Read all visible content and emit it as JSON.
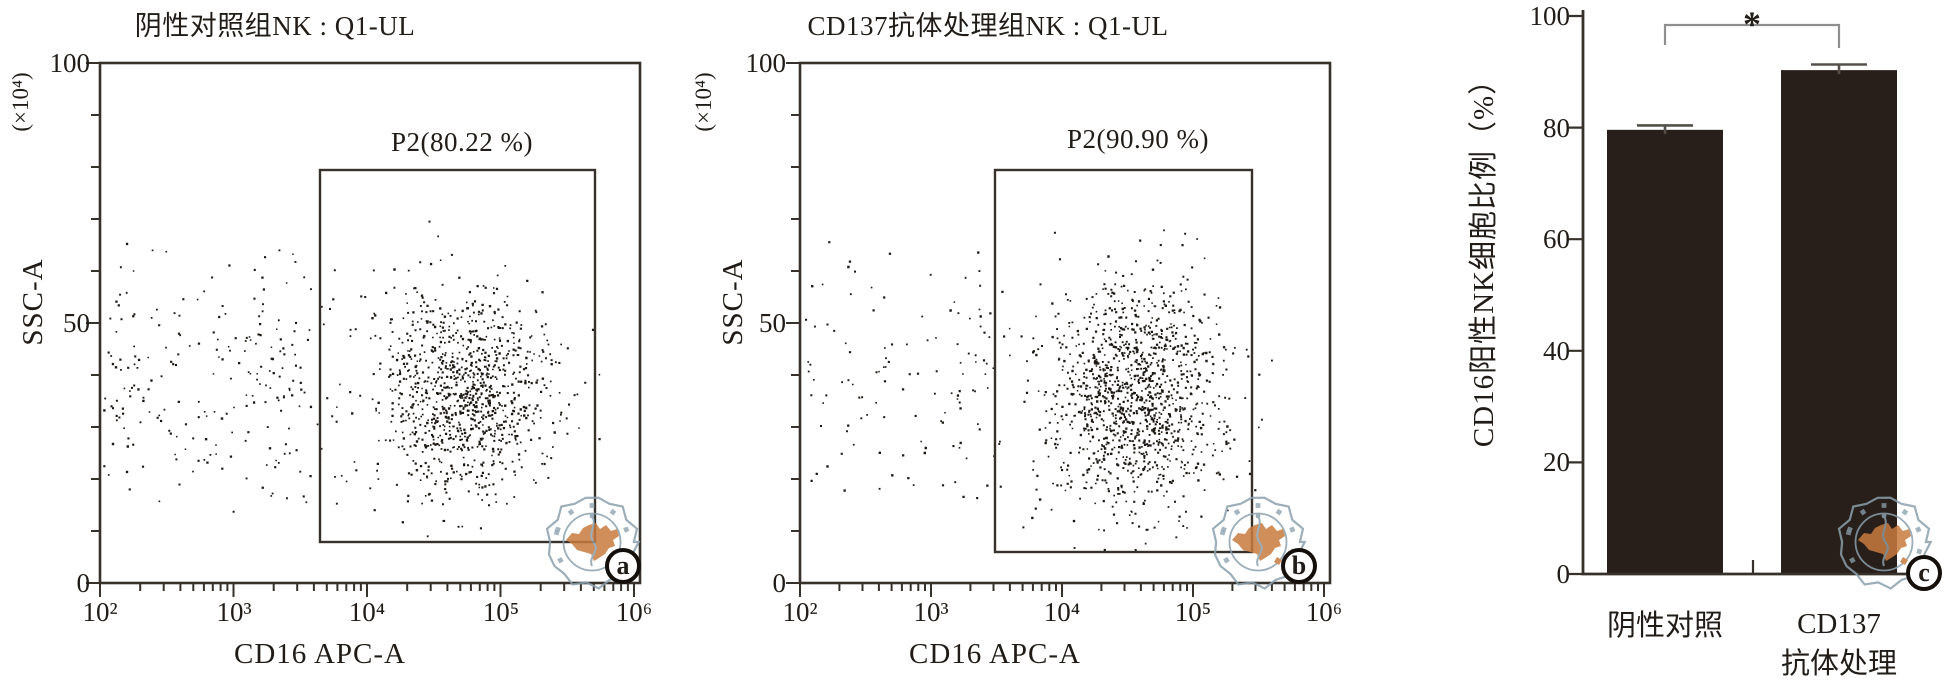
{
  "colors": {
    "axis": "#37312b",
    "text": "#211c17",
    "point": "#1d1813",
    "bar": "#281f1a",
    "error_bar": "#56504a",
    "bracket": "#8f8f8f",
    "stamp_ring": "#8aa0ad",
    "stamp_map": "#c87b3f"
  },
  "panels": {
    "a": {
      "letter": "a",
      "title": "阴性对照组NK : Q1-UL",
      "gate_label": "P2(80.22 %)",
      "xlabel": "CD16 APC-A",
      "ylabel": "SSC-A",
      "y_unit": "(×10⁴)",
      "x_tick_labels": [
        "10²",
        "10³",
        "10⁴",
        "10⁵",
        "10⁶"
      ],
      "y_tick_labels": [
        "100",
        "50",
        "0"
      ]
    },
    "b": {
      "letter": "b",
      "title": "CD137抗体处理组NK : Q1-UL",
      "gate_label": "P2(90.90 %)",
      "xlabel": "CD16 APC-A",
      "ylabel": "SSC-A",
      "y_unit": "(×10⁴)",
      "x_tick_labels": [
        "10²",
        "10³",
        "10⁴",
        "10⁵",
        "10⁶"
      ],
      "y_tick_labels": [
        "100",
        "50",
        "0"
      ]
    },
    "c": {
      "letter": "c",
      "ylabel": "CD16阳性NK细胞比例（%）",
      "y_tick_labels": [
        "100",
        "80",
        "60",
        "40",
        "20",
        "0"
      ],
      "significance": "*",
      "category1_line1": "阴性对照",
      "category2_line1": "CD137",
      "category2_line2": "抗体处理"
    }
  },
  "chart_data": [
    {
      "type": "scatter",
      "panel": "a",
      "title": "阴性对照组NK : Q1-UL",
      "xlabel": "CD16 APC-A",
      "ylabel": "SSC-A (×10⁴)",
      "x_scale": "log",
      "x_range": [
        100,
        1000000
      ],
      "y_range": [
        0,
        100
      ],
      "y_ticks": [
        0,
        50,
        100
      ],
      "gate": {
        "name": "P2",
        "percent": 80.22,
        "x_range": [
          4400,
          500000
        ],
        "y_range": [
          8,
          79
        ]
      },
      "population": {
        "main_cluster": {
          "n": 1050,
          "center_x_log10": 4.72,
          "sd_x_log10": 0.3,
          "center_y": 37,
          "sd_y": 10,
          "x_clip_log10": [
            3.6,
            5.85
          ],
          "y_clip": [
            8,
            70
          ]
        },
        "mid_scatter": {
          "n": 50,
          "x_log10_range": [
            3.2,
            4.1
          ],
          "y_range": [
            14,
            62
          ]
        },
        "negative_cloud": {
          "n": 200,
          "x_log10_range": [
            2.02,
            3.5
          ],
          "y_range": [
            12,
            68
          ]
        }
      }
    },
    {
      "type": "scatter",
      "panel": "b",
      "title": "CD137抗体处理组NK : Q1-UL",
      "xlabel": "CD16 APC-A",
      "ylabel": "SSC-A (×10⁴)",
      "x_scale": "log",
      "x_range": [
        100,
        1000000
      ],
      "y_range": [
        0,
        100
      ],
      "y_ticks": [
        0,
        50,
        100
      ],
      "gate": {
        "name": "P2",
        "percent": 90.9,
        "x_range": [
          3100,
          280000
        ],
        "y_range": [
          6,
          79
        ]
      },
      "population": {
        "main_cluster": {
          "n": 1300,
          "center_x_log10": 4.55,
          "sd_x_log10": 0.33,
          "center_y": 36,
          "sd_y": 11,
          "x_clip_log10": [
            3.52,
            5.8
          ],
          "y_clip": [
            6,
            72
          ]
        },
        "mid_scatter": {
          "n": 25,
          "x_log10_range": [
            3.15,
            4.0
          ],
          "y_range": [
            14,
            60
          ]
        },
        "negative_cloud": {
          "n": 105,
          "x_log10_range": [
            2.02,
            3.45
          ],
          "y_range": [
            10,
            66
          ]
        }
      }
    },
    {
      "type": "bar",
      "panel": "c",
      "categories": [
        "阴性对照",
        "CD137抗体处理"
      ],
      "values": [
        79.6,
        90.3
      ],
      "errors": [
        0.8,
        1.0
      ],
      "ylabel": "CD16阳性NK细胞比例（%）",
      "ylim": [
        0,
        100
      ],
      "y_ticks": [
        0,
        20,
        40,
        60,
        80,
        100
      ],
      "significance": {
        "pair": [
          0,
          1
        ],
        "label": "*"
      },
      "legend": "none",
      "grid": false
    }
  ]
}
